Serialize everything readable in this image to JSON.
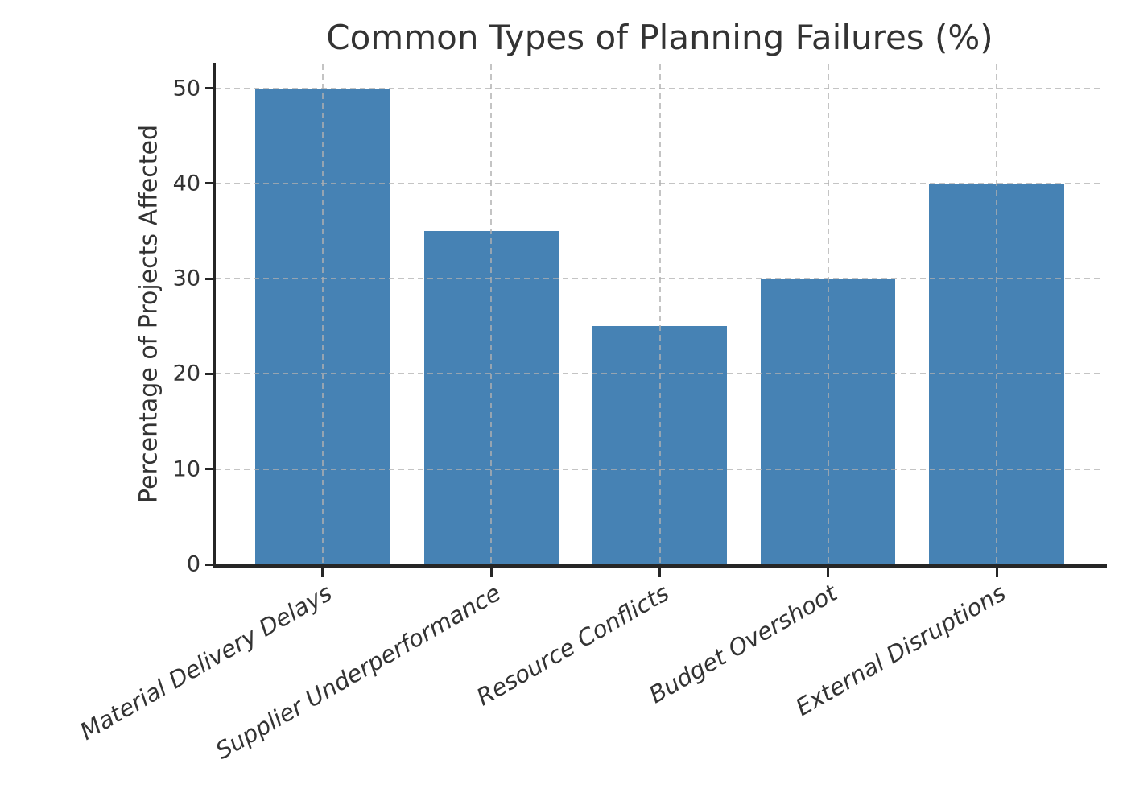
{
  "chart_data": {
    "type": "bar",
    "title": "Common Types of Planning Failures (%)",
    "xlabel": "",
    "ylabel": "Percentage of Projects Affected",
    "categories": [
      "Material Delivery Delays",
      "Supplier Underperformance",
      "Resource Conflicts",
      "Budget Overshoot",
      "External Disruptions"
    ],
    "values": [
      50,
      35,
      25,
      30,
      40
    ],
    "yticks": [
      0,
      10,
      20,
      30,
      40,
      50
    ],
    "ylim": [
      0,
      52.5
    ],
    "bar_color": "#4682B4",
    "grid": true,
    "grid_line_style": "dashed",
    "grid_color": "#b0b0b0",
    "axis_color": "#262626",
    "text_color": "#333333",
    "legend_position": "none"
  }
}
